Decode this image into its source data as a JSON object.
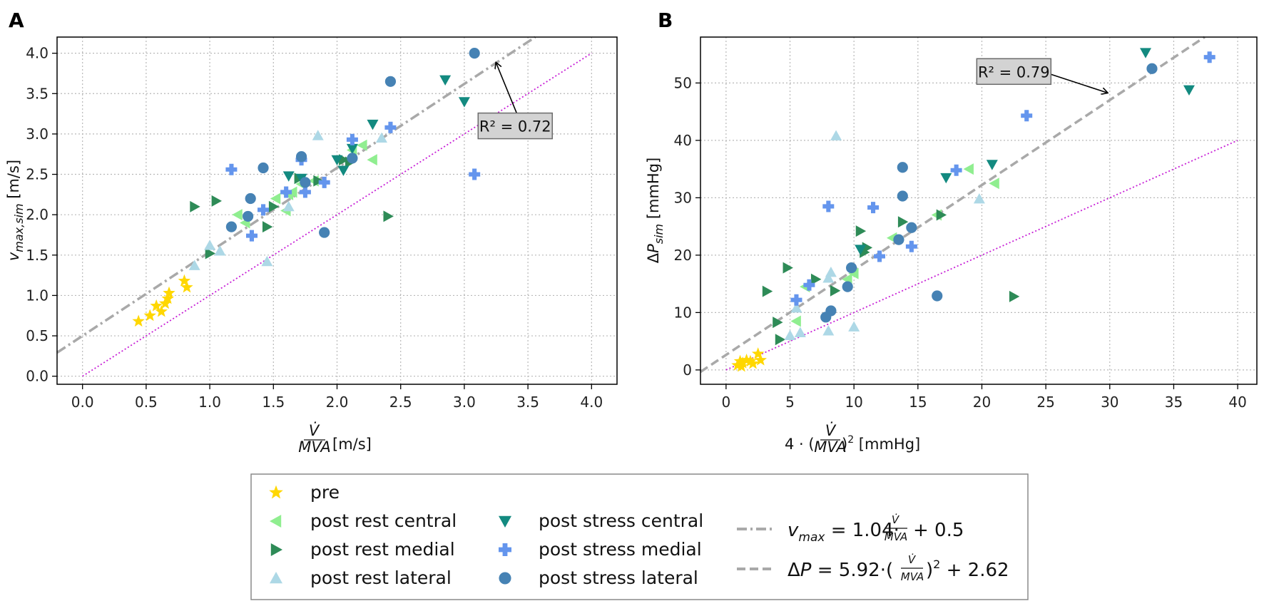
{
  "colors": {
    "pre": "#FFD700",
    "post_rest_central": "#90EE90",
    "post_rest_medial": "#2E8B57",
    "post_rest_lateral": "#ADD8E6",
    "post_stress_central": "#138A80",
    "post_stress_medial": "#6495ED",
    "post_stress_lateral": "#4682B4",
    "fit_line": "#A9A9A9",
    "identity_line": "#C71FD6",
    "grid": "#B8B8B8",
    "annot_box": "#D3D3D3"
  },
  "legend": {
    "items": [
      {
        "key": "pre",
        "label": "pre",
        "marker": "star"
      },
      {
        "key": "post_rest_central",
        "label": "post rest central",
        "marker": "triangle-left"
      },
      {
        "key": "post_rest_medial",
        "label": "post rest medial",
        "marker": "triangle-right"
      },
      {
        "key": "post_rest_lateral",
        "label": "post rest lateral",
        "marker": "triangle-up"
      },
      {
        "key": "post_stress_central",
        "label": "post stress central",
        "marker": "triangle-down"
      },
      {
        "key": "post_stress_medial",
        "label": "post stress medial",
        "marker": "plus"
      },
      {
        "key": "post_stress_lateral",
        "label": "post stress lateral",
        "marker": "circle"
      }
    ],
    "fit_a_label": "v_max = 1.04·(V̇/MVA) + 0.5",
    "fit_b_label": "ΔP = 5.92·(V̇/MVA)² + 2.62"
  },
  "chart_data": [
    {
      "panel": "A",
      "type": "scatter",
      "xlabel": "V̇/MVA [m/s]",
      "ylabel": "v_max,sim [m/s]",
      "xlim": [
        -0.2,
        4.2
      ],
      "ylim": [
        -0.1,
        4.2
      ],
      "xticks": [
        "0.0",
        "0.5",
        "1.0",
        "1.5",
        "2.0",
        "2.5",
        "3.0",
        "3.5",
        "4.0"
      ],
      "xtick_values": [
        0,
        0.5,
        1,
        1.5,
        2,
        2.5,
        3,
        3.5,
        4
      ],
      "yticks": [
        "0.0",
        "0.5",
        "1.0",
        "1.5",
        "2.0",
        "2.5",
        "3.0",
        "3.5",
        "4.0"
      ],
      "ytick_values": [
        0,
        0.5,
        1,
        1.5,
        2,
        2.5,
        3,
        3.5,
        4
      ],
      "annotation": {
        "text": "R² = 0.72",
        "label_at": [
          3.4,
          3.1
        ],
        "arrow_to": [
          3.25,
          3.88
        ]
      },
      "fit_line": {
        "slope": 1.04,
        "intercept": 0.5,
        "x_range": [
          -0.2,
          3.6
        ],
        "style": "dashdot"
      },
      "identity_line": {
        "x_range": [
          0,
          4
        ],
        "y_range": [
          0,
          4
        ]
      },
      "series": [
        {
          "key": "pre",
          "points": [
            [
              0.44,
              0.68
            ],
            [
              0.53,
              0.75
            ],
            [
              0.58,
              0.87
            ],
            [
              0.62,
              0.8
            ],
            [
              0.65,
              0.9
            ],
            [
              0.67,
              0.96
            ],
            [
              0.68,
              1.03
            ],
            [
              0.8,
              1.18
            ],
            [
              0.82,
              1.1
            ]
          ]
        },
        {
          "key": "post_rest_central",
          "points": [
            [
              1.22,
              2.0
            ],
            [
              1.28,
              1.9
            ],
            [
              1.52,
              2.2
            ],
            [
              1.6,
              2.05
            ],
            [
              1.62,
              2.25
            ],
            [
              1.65,
              2.28
            ],
            [
              1.72,
              2.38
            ],
            [
              1.82,
              2.42
            ],
            [
              2.12,
              2.8
            ],
            [
              2.2,
              2.86
            ],
            [
              2.28,
              2.68
            ]
          ]
        },
        {
          "key": "post_rest_medial",
          "points": [
            [
              0.88,
              2.1
            ],
            [
              1.05,
              2.17
            ],
            [
              1.0,
              1.52
            ],
            [
              1.45,
              1.85
            ],
            [
              1.5,
              2.1
            ],
            [
              1.7,
              2.45
            ],
            [
              1.85,
              2.42
            ],
            [
              2.05,
              2.68
            ],
            [
              2.1,
              2.65
            ],
            [
              2.4,
              1.98
            ]
          ]
        },
        {
          "key": "post_rest_lateral",
          "points": [
            [
              0.88,
              1.37
            ],
            [
              1.0,
              1.62
            ],
            [
              1.08,
              1.55
            ],
            [
              1.45,
              1.42
            ],
            [
              1.62,
              2.1
            ],
            [
              1.85,
              2.98
            ],
            [
              2.35,
              2.95
            ]
          ]
        },
        {
          "key": "post_stress_central",
          "points": [
            [
              1.62,
              2.48
            ],
            [
              1.72,
              2.45
            ],
            [
              2.0,
              2.68
            ],
            [
              2.05,
              2.55
            ],
            [
              2.12,
              2.82
            ],
            [
              2.28,
              3.12
            ],
            [
              2.85,
              3.67
            ],
            [
              3.0,
              3.4
            ]
          ]
        },
        {
          "key": "post_stress_medial",
          "points": [
            [
              1.17,
              2.56
            ],
            [
              1.33,
              1.74
            ],
            [
              1.42,
              2.06
            ],
            [
              1.6,
              2.28
            ],
            [
              1.72,
              2.68
            ],
            [
              1.75,
              2.28
            ],
            [
              1.9,
              2.4
            ],
            [
              2.12,
              2.93
            ],
            [
              2.42,
              3.08
            ],
            [
              3.08,
              2.5
            ]
          ]
        },
        {
          "key": "post_stress_lateral",
          "points": [
            [
              1.17,
              1.85
            ],
            [
              1.3,
              1.98
            ],
            [
              1.32,
              2.2
            ],
            [
              1.42,
              2.58
            ],
            [
              1.72,
              2.72
            ],
            [
              1.75,
              2.4
            ],
            [
              1.9,
              1.78
            ],
            [
              2.12,
              2.7
            ],
            [
              2.42,
              3.65
            ],
            [
              3.08,
              4.0
            ]
          ]
        }
      ]
    },
    {
      "panel": "B",
      "type": "scatter",
      "xlabel": "4·(V̇/MVA)² [mmHg]",
      "ylabel": "ΔP_sim [mmHg]",
      "xlim": [
        -2,
        41.5
      ],
      "ylim": [
        -2.5,
        58
      ],
      "xticks": [
        "0",
        "5",
        "10",
        "15",
        "20",
        "25",
        "30",
        "35",
        "40"
      ],
      "xtick_values": [
        0,
        5,
        10,
        15,
        20,
        25,
        30,
        35,
        40
      ],
      "yticks": [
        "0",
        "10",
        "20",
        "30",
        "40",
        "50"
      ],
      "ytick_values": [
        0,
        10,
        20,
        30,
        40,
        50
      ],
      "annotation": {
        "text": "R² = 0.79",
        "label_at": [
          22.5,
          52
        ],
        "arrow_to": [
          29.8,
          48.3
        ]
      },
      "fit_line": {
        "slope": 1.48,
        "intercept": 2.62,
        "x_range": [
          -2,
          37.5
        ],
        "style": "dashed"
      },
      "identity_line": {
        "x_range": [
          0,
          40
        ],
        "y_range": [
          0,
          40
        ]
      },
      "series": [
        {
          "key": "pre",
          "points": [
            [
              0.9,
              0.8
            ],
            [
              1.1,
              1.5
            ],
            [
              1.3,
              1.2
            ],
            [
              1.6,
              1.7
            ],
            [
              1.9,
              1.5
            ],
            [
              2.5,
              2.8
            ],
            [
              2.7,
              1.7
            ],
            [
              1.2,
              0.6
            ],
            [
              2.1,
              1.1
            ]
          ]
        },
        {
          "key": "post_rest_central",
          "points": [
            [
              5.5,
              8.5
            ],
            [
              6.2,
              14.5
            ],
            [
              9.5,
              15.8
            ],
            [
              10.0,
              16.8
            ],
            [
              13.0,
              23.0
            ],
            [
              19.0,
              35.0
            ],
            [
              21.0,
              32.5
            ],
            [
              16.5,
              27.0
            ]
          ]
        },
        {
          "key": "post_rest_medial",
          "points": [
            [
              3.2,
              13.7
            ],
            [
              4.0,
              8.3
            ],
            [
              4.2,
              5.3
            ],
            [
              4.8,
              17.8
            ],
            [
              7.0,
              15.8
            ],
            [
              8.5,
              13.8
            ],
            [
              10.5,
              24.2
            ],
            [
              11.0,
              21.3
            ],
            [
              10.8,
              20.5
            ],
            [
              13.8,
              25.8
            ],
            [
              16.8,
              27.0
            ],
            [
              22.5,
              12.8
            ]
          ]
        },
        {
          "key": "post_rest_lateral",
          "points": [
            [
              5.0,
              6.0
            ],
            [
              5.5,
              10.8
            ],
            [
              5.8,
              6.5
            ],
            [
              8.0,
              16.0
            ],
            [
              8.2,
              17.0
            ],
            [
              8.0,
              6.8
            ],
            [
              8.6,
              40.8
            ],
            [
              10.0,
              7.5
            ],
            [
              19.8,
              29.8
            ]
          ]
        },
        {
          "key": "post_stress_central",
          "points": [
            [
              10.5,
              21.0
            ],
            [
              17.2,
              33.5
            ],
            [
              20.8,
              35.8
            ],
            [
              32.8,
              55.3
            ],
            [
              36.2,
              48.8
            ]
          ]
        },
        {
          "key": "post_stress_medial",
          "points": [
            [
              5.5,
              12.2
            ],
            [
              6.5,
              14.8
            ],
            [
              8.0,
              28.5
            ],
            [
              11.5,
              28.3
            ],
            [
              12.0,
              19.8
            ],
            [
              14.5,
              21.5
            ],
            [
              18.0,
              34.8
            ],
            [
              23.5,
              44.3
            ],
            [
              37.8,
              54.5
            ]
          ]
        },
        {
          "key": "post_stress_lateral",
          "points": [
            [
              7.8,
              9.2
            ],
            [
              8.2,
              10.3
            ],
            [
              9.5,
              14.5
            ],
            [
              9.8,
              17.8
            ],
            [
              13.5,
              22.7
            ],
            [
              13.8,
              30.3
            ],
            [
              13.8,
              35.3
            ],
            [
              14.5,
              24.8
            ],
            [
              16.5,
              12.9
            ],
            [
              33.3,
              52.5
            ]
          ]
        }
      ]
    }
  ]
}
